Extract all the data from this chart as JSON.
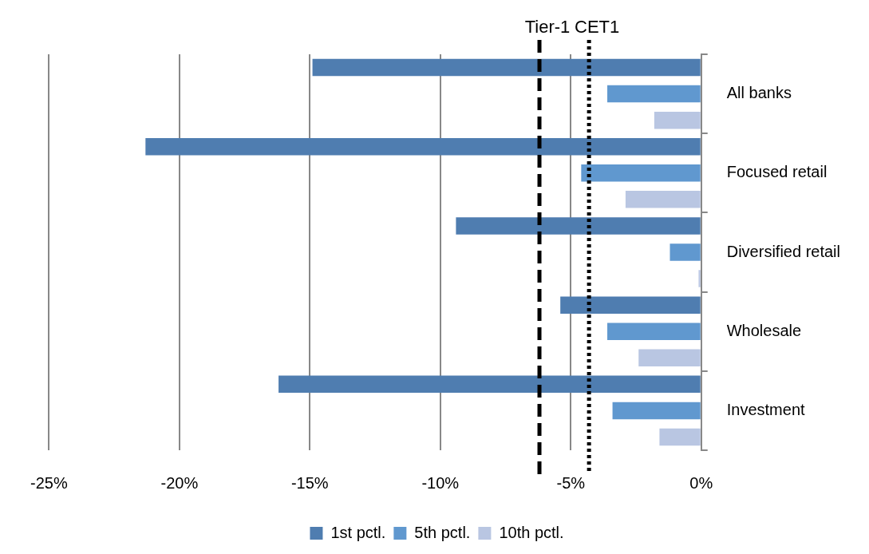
{
  "chart_data": {
    "type": "bar",
    "orientation": "horizontal",
    "categories": [
      "All banks",
      "Focused retail",
      "Diversified retail",
      "Wholesale",
      "Investment"
    ],
    "series": [
      {
        "name": "1st pctl.",
        "color": "#4f7db0",
        "values": [
          -14.9,
          -21.3,
          -9.4,
          -5.4,
          -16.2
        ]
      },
      {
        "name": "5th pctl.",
        "color": "#6098cf",
        "values": [
          -3.6,
          -4.6,
          -1.2,
          -3.6,
          -3.4
        ]
      },
      {
        "name": "10th pctl.",
        "color": "#b9c6e2",
        "values": [
          -1.8,
          -2.9,
          -0.1,
          -2.4,
          -1.6
        ]
      }
    ],
    "xlim": [
      -25,
      0
    ],
    "xticks": [
      {
        "value": -25,
        "label": "-25%"
      },
      {
        "value": -20,
        "label": "-20%"
      },
      {
        "value": -15,
        "label": "-15%"
      },
      {
        "value": -10,
        "label": "-10%"
      },
      {
        "value": -5,
        "label": "-5%"
      },
      {
        "value": 0,
        "label": "0%"
      }
    ],
    "grid": "x",
    "legend": "bottom",
    "ref_lines": [
      {
        "axis": "x",
        "value": -6.2,
        "label": "Tier-1",
        "color": "#000000",
        "line_style": "dashed"
      },
      {
        "axis": "x",
        "value": -4.3,
        "label": "CET1",
        "color": "#000000",
        "line_style": "dotted"
      }
    ]
  }
}
